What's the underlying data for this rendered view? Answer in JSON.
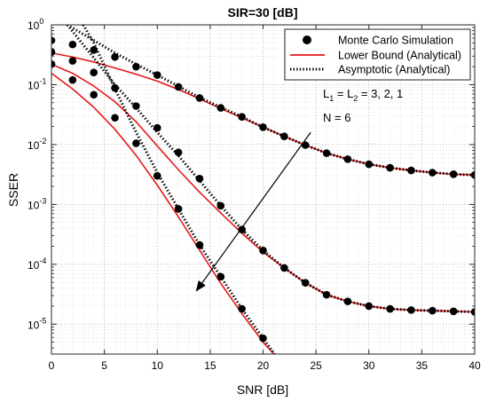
{
  "chart_data": {
    "type": "line",
    "title": "SIR=30 [dB]",
    "xlabel": "SNR [dB]",
    "ylabel": "SSER",
    "xlim": [
      0,
      40
    ],
    "ylim_log10": [
      -5.5,
      0
    ],
    "y_scale": "log",
    "grid": true,
    "minor_grid": true,
    "legend_placement": "top-right",
    "x_ticks": [
      0,
      5,
      10,
      15,
      20,
      25,
      30,
      35,
      40
    ],
    "x_tick_labels": [
      "0",
      "5",
      "10",
      "15",
      "20",
      "25",
      "30",
      "35",
      "40"
    ],
    "y_ticks": [
      1e-05,
      0.0001,
      0.001,
      0.01,
      0.1,
      1
    ],
    "y_tick_labels": [
      {
        "base": "10",
        "exp": "-5"
      },
      {
        "base": "10",
        "exp": "-4"
      },
      {
        "base": "10",
        "exp": "-3"
      },
      {
        "base": "10",
        "exp": "-2"
      },
      {
        "base": "10",
        "exp": "-1"
      },
      {
        "base": "10",
        "exp": "0"
      }
    ],
    "legend": [
      {
        "label": "Monte Carlo Simulation",
        "style": "marker",
        "color": "#000000"
      },
      {
        "label": "Lower Bound (Analytical)",
        "style": "solid",
        "color": "#e8191b"
      },
      {
        "label": "Asymptotic (Analytical)",
        "style": "dotted",
        "color": "#000000"
      }
    ],
    "annotation": {
      "line1_main": "L",
      "line1_sub1": "1",
      "line1_mid": " = L",
      "line1_sub2": "2",
      "line1_end": " = 3, 2, 1",
      "line2": "N = 6",
      "arrow_from": [
        24.5,
        0.016
      ],
      "arrow_to": [
        13.7,
        3.6e-05
      ]
    },
    "series": [
      {
        "sim_x": [
          0,
          2,
          4,
          6,
          8,
          10,
          12,
          14,
          16,
          18,
          20,
          22,
          24,
          26,
          28,
          30,
          32,
          34,
          36,
          38,
          40
        ],
        "sim_y": [
          0.55,
          0.47,
          0.38,
          0.29,
          0.2,
          0.145,
          0.092,
          0.06,
          0.041,
          0.029,
          0.0195,
          0.0137,
          0.0098,
          0.0072,
          0.0057,
          0.0047,
          0.0041,
          0.0037,
          0.0034,
          0.0032,
          0.0031
        ],
        "lower_x": [
          0,
          2,
          4,
          6,
          8,
          10,
          12,
          14,
          16,
          18,
          20,
          22,
          24,
          26,
          28,
          30,
          32,
          34,
          36,
          38,
          40
        ],
        "lower_y": [
          0.34,
          0.29,
          0.24,
          0.19,
          0.15,
          0.115,
          0.083,
          0.058,
          0.04,
          0.028,
          0.0195,
          0.0137,
          0.0098,
          0.0072,
          0.0057,
          0.0047,
          0.0041,
          0.0037,
          0.0034,
          0.0032,
          0.0031
        ],
        "asym_x": [
          1.5,
          4,
          6,
          8,
          10,
          12,
          14,
          16,
          18,
          20,
          22,
          24,
          26,
          28,
          30,
          32,
          34,
          36,
          38,
          40
        ],
        "asym_y": [
          1.0,
          0.55,
          0.34,
          0.22,
          0.145,
          0.094,
          0.061,
          0.042,
          0.029,
          0.0195,
          0.0137,
          0.0098,
          0.0072,
          0.0057,
          0.0047,
          0.0041,
          0.0037,
          0.0034,
          0.0032,
          0.0031
        ]
      },
      {
        "sim_x": [
          0,
          2,
          4,
          6,
          8,
          10,
          12,
          14,
          16,
          18,
          20,
          22,
          24,
          26,
          28,
          30,
          32,
          34,
          36,
          38,
          40
        ],
        "sim_y": [
          0.35,
          0.25,
          0.16,
          0.088,
          0.044,
          0.019,
          0.0074,
          0.0027,
          0.00095,
          0.00038,
          0.00017,
          8.7e-05,
          4.9e-05,
          3.1e-05,
          2.4e-05,
          2e-05,
          1.8e-05,
          1.72e-05,
          1.68e-05,
          1.64e-05,
          1.6e-05
        ],
        "lower_x": [
          0,
          2,
          4,
          6,
          8,
          10,
          12,
          14,
          16,
          18,
          20,
          22,
          24,
          26,
          28,
          30,
          32,
          34,
          36,
          38,
          40
        ],
        "lower_y": [
          0.22,
          0.155,
          0.095,
          0.052,
          0.024,
          0.0095,
          0.0038,
          0.0016,
          0.00072,
          0.00033,
          0.00016,
          8.7e-05,
          4.9e-05,
          3.1e-05,
          2.4e-05,
          2e-05,
          1.8e-05,
          1.72e-05,
          1.68e-05,
          1.64e-05,
          1.6e-05
        ],
        "asym_x": [
          1.5,
          4,
          6,
          8,
          10,
          12,
          14,
          16,
          18,
          20,
          22,
          24,
          26,
          28,
          30,
          32,
          34,
          36,
          38,
          40
        ],
        "asym_y": [
          1.0,
          0.28,
          0.1,
          0.041,
          0.016,
          0.0065,
          0.0025,
          0.00095,
          0.00038,
          0.00017,
          8.7e-05,
          4.9e-05,
          3.1e-05,
          2.4e-05,
          2e-05,
          1.8e-05,
          1.72e-05,
          1.68e-05,
          1.64e-05,
          1.6e-05
        ]
      },
      {
        "sim_x": [
          0,
          2,
          4,
          6,
          8,
          10,
          12,
          14,
          16,
          18,
          20
        ],
        "sim_y": [
          0.22,
          0.12,
          0.068,
          0.028,
          0.0105,
          0.003,
          0.00084,
          0.00021,
          6.2e-05,
          1.8e-05,
          5.8e-06
        ],
        "lower_x": [
          0,
          2,
          4,
          6,
          8,
          10,
          12,
          14,
          16,
          18,
          20,
          21.3
        ],
        "lower_y": [
          0.155,
          0.085,
          0.042,
          0.018,
          0.0066,
          0.0021,
          0.00062,
          0.000172,
          4.8e-05,
          1.5e-05,
          5e-06,
          2.8e-06
        ],
        "asym_x": [
          3.0,
          4,
          6,
          8,
          10,
          12,
          14,
          16,
          18,
          20,
          21.3
        ],
        "asym_y": [
          1.0,
          0.5,
          0.085,
          0.016,
          0.0034,
          0.00084,
          0.00021,
          6.2e-05,
          1.8e-05,
          5.8e-06,
          2.8e-06
        ]
      }
    ]
  }
}
